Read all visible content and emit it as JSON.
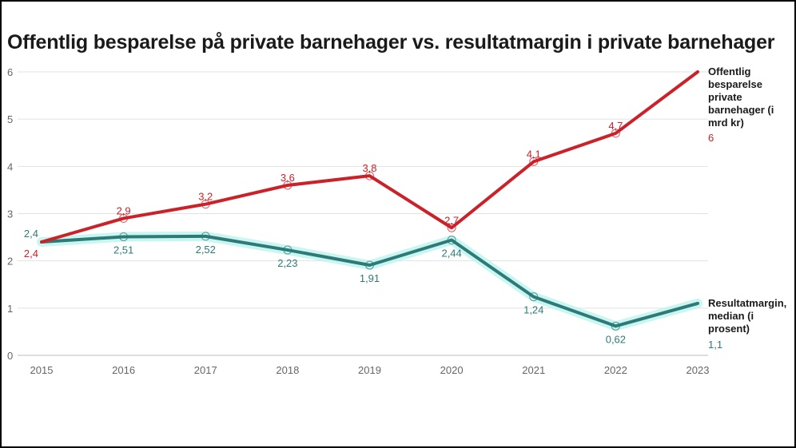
{
  "chart_data": {
    "type": "line",
    "title": "Offentlig besparelse på private barnehager vs. resultatmargin i private barnehager",
    "xlabel": "",
    "ylabel": "",
    "categories": [
      "2015",
      "2016",
      "2017",
      "2018",
      "2019",
      "2020",
      "2021",
      "2022",
      "2023"
    ],
    "y_ticks": [
      "0",
      "1",
      "2",
      "3",
      "4",
      "5",
      "6"
    ],
    "ylim": [
      0,
      6
    ],
    "grid": true,
    "legend": "end-of-line labels (right)",
    "series": [
      {
        "name": "Offentlig besparelse private barnehager (i mrd kr)",
        "color": "#cc2128",
        "values": [
          2.4,
          2.9,
          3.2,
          3.6,
          3.8,
          2.7,
          4.1,
          4.7,
          6
        ],
        "labels": [
          "2,4",
          "2,9",
          "3,2",
          "3,6",
          "3,8",
          "2,7",
          "4,1",
          "4,7",
          "6"
        ]
      },
      {
        "name": "Resultatmargin, median (i prosent)",
        "color": "#2e7a78",
        "glow_color": "#bff5ef",
        "values": [
          2.4,
          2.51,
          2.52,
          2.23,
          1.91,
          2.44,
          1.24,
          0.62,
          1.1
        ],
        "labels": [
          "2,4",
          "2,51",
          "2,52",
          "2,23",
          "1,91",
          "2,44",
          "1,24",
          "0,62",
          "1,1"
        ]
      }
    ]
  }
}
